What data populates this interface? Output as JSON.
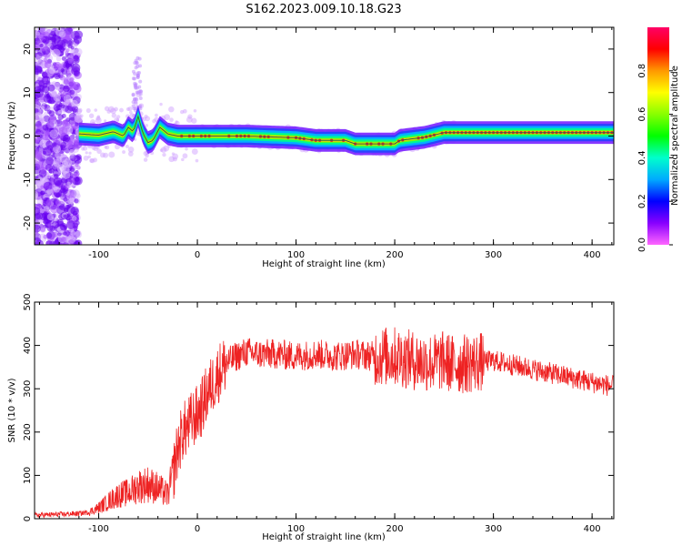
{
  "title": "S162.2023.009.10.18.G23",
  "chart_data": [
    {
      "type": "heatmap",
      "xlabel": "Height of straight line (km)",
      "ylabel": "Frequency (Hz)",
      "xlim": [
        -165,
        422
      ],
      "ylim": [
        -25,
        25
      ],
      "x_ticks": [
        -100,
        0,
        100,
        200,
        300,
        400
      ],
      "y_ticks": [
        -20,
        -10,
        0,
        10,
        20
      ],
      "colorbar": {
        "label": "Normalized spectral amplitude",
        "range": [
          0,
          1
        ],
        "ticks": [
          0.0,
          0.2,
          0.4,
          0.6,
          0.8
        ],
        "colormap": "hsv-rainbow"
      },
      "ridge": [
        {
          "x": -120,
          "y": 0.5
        },
        {
          "x": -100,
          "y": 0.2
        },
        {
          "x": -85,
          "y": 1.0
        },
        {
          "x": -75,
          "y": 0.0
        },
        {
          "x": -70,
          "y": 2.0
        },
        {
          "x": -65,
          "y": 1.0
        },
        {
          "x": -60,
          "y": 4.5
        },
        {
          "x": -55,
          "y": 0.5
        },
        {
          "x": -50,
          "y": -1.5
        },
        {
          "x": -45,
          "y": -1.0
        },
        {
          "x": -38,
          "y": 2.0
        },
        {
          "x": -30,
          "y": 0.5
        },
        {
          "x": -20,
          "y": 0.0
        },
        {
          "x": 0,
          "y": 0.0
        },
        {
          "x": 50,
          "y": 0.0
        },
        {
          "x": 100,
          "y": -0.4
        },
        {
          "x": 120,
          "y": -1.0
        },
        {
          "x": 150,
          "y": -1.0
        },
        {
          "x": 160,
          "y": -1.8
        },
        {
          "x": 200,
          "y": -1.8
        },
        {
          "x": 205,
          "y": -1.0
        },
        {
          "x": 230,
          "y": -0.3
        },
        {
          "x": 250,
          "y": 0.8
        },
        {
          "x": 300,
          "y": 0.8
        },
        {
          "x": 350,
          "y": 0.8
        },
        {
          "x": 422,
          "y": 0.8
        }
      ]
    },
    {
      "type": "line",
      "xlabel": "Height of straight line (km)",
      "ylabel": "SNR (10 * v/v)",
      "xlim": [
        -165,
        422
      ],
      "ylim": [
        0,
        500
      ],
      "x_ticks": [
        -100,
        0,
        100,
        200,
        300,
        400
      ],
      "y_ticks": [
        0,
        100,
        200,
        300,
        400,
        500
      ],
      "color": "#ee2222",
      "series": [
        {
          "x": [
            -165,
            -140,
            -120,
            -110,
            -100,
            -90,
            -80,
            -70,
            -60,
            -50,
            -40,
            -30,
            -25,
            -20,
            -15,
            -10,
            -5,
            0,
            5,
            10,
            15,
            20,
            25,
            30,
            40,
            50,
            60,
            80,
            100,
            120,
            140,
            160,
            180,
            200,
            220,
            240,
            250,
            260,
            280,
            300,
            320,
            340,
            360,
            380,
            400,
            422
          ],
          "y": [
            8,
            10,
            12,
            15,
            25,
            40,
            55,
            60,
            75,
            80,
            70,
            55,
            100,
            160,
            200,
            210,
            230,
            240,
            260,
            290,
            310,
            330,
            350,
            360,
            375,
            385,
            380,
            380,
            375,
            380,
            375,
            380,
            375,
            375,
            365,
            360,
            365,
            355,
            360,
            365,
            355,
            345,
            335,
            325,
            315,
            305
          ]
        }
      ]
    }
  ]
}
